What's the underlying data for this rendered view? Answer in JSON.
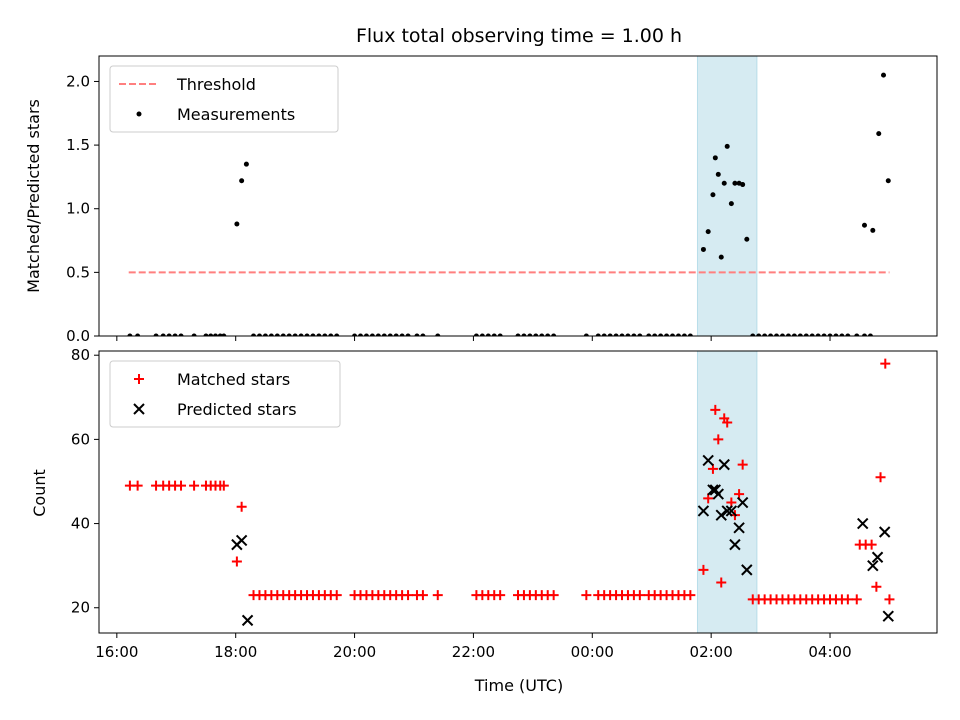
{
  "chart_data": [
    {
      "type": "scatter",
      "title": "Flux total observing time = 1.00 h",
      "xlabel": "",
      "ylabel": "Matched/Predicted stars",
      "x_unit": "hours since 16:00 UTC",
      "xlim": [
        15.7,
        29.8
      ],
      "ylim": [
        0.0,
        2.2
      ],
      "yticks": [
        "0.0",
        "0.5",
        "1.0",
        "1.5",
        "2.0"
      ],
      "yticks_values": [
        0.0,
        0.5,
        1.0,
        1.5,
        2.0
      ],
      "legend": {
        "placement": "upper-left",
        "entries": [
          "Threshold",
          "Measurements"
        ]
      },
      "highlight_span": [
        1.77,
        2.77
      ],
      "threshold": {
        "name": "Threshold",
        "value": 0.5,
        "x_range": [
          16.2,
          29.0
        ],
        "color": "#ff7f7f"
      },
      "series": [
        {
          "name": "Measurements",
          "color": "#000000",
          "points": [
            [
              16.22,
              0
            ],
            [
              16.35,
              0
            ],
            [
              16.66,
              0
            ],
            [
              16.78,
              0
            ],
            [
              16.88,
              0
            ],
            [
              16.98,
              0
            ],
            [
              17.08,
              0
            ],
            [
              17.3,
              0
            ],
            [
              17.5,
              0
            ],
            [
              17.58,
              0
            ],
            [
              17.66,
              0
            ],
            [
              17.74,
              0
            ],
            [
              17.8,
              0
            ],
            [
              18.02,
              0.88
            ],
            [
              18.1,
              1.22
            ],
            [
              18.18,
              1.35
            ],
            [
              18.3,
              0
            ],
            [
              18.4,
              0
            ],
            [
              18.5,
              0
            ],
            [
              18.6,
              0
            ],
            [
              18.7,
              0
            ],
            [
              18.8,
              0
            ],
            [
              18.9,
              0
            ],
            [
              19.0,
              0
            ],
            [
              19.1,
              0
            ],
            [
              19.2,
              0
            ],
            [
              19.3,
              0
            ],
            [
              19.4,
              0
            ],
            [
              19.5,
              0
            ],
            [
              19.6,
              0
            ],
            [
              19.7,
              0
            ],
            [
              20.0,
              0
            ],
            [
              20.1,
              0
            ],
            [
              20.2,
              0
            ],
            [
              20.3,
              0
            ],
            [
              20.4,
              0
            ],
            [
              20.5,
              0
            ],
            [
              20.6,
              0
            ],
            [
              20.7,
              0
            ],
            [
              20.8,
              0
            ],
            [
              20.9,
              0
            ],
            [
              21.05,
              0
            ],
            [
              21.15,
              0
            ],
            [
              21.4,
              0
            ],
            [
              22.05,
              0
            ],
            [
              22.15,
              0
            ],
            [
              22.25,
              0
            ],
            [
              22.35,
              0
            ],
            [
              22.45,
              0
            ],
            [
              22.75,
              0
            ],
            [
              22.85,
              0
            ],
            [
              22.95,
              0
            ],
            [
              23.05,
              0
            ],
            [
              23.15,
              0
            ],
            [
              23.25,
              0
            ],
            [
              23.35,
              0
            ],
            [
              23.9,
              0
            ],
            [
              24.1,
              0
            ],
            [
              24.2,
              0
            ],
            [
              24.3,
              0
            ],
            [
              24.4,
              0
            ],
            [
              24.5,
              0
            ],
            [
              24.6,
              0
            ],
            [
              24.7,
              0
            ],
            [
              24.8,
              0
            ],
            [
              24.95,
              0
            ],
            [
              25.05,
              0
            ],
            [
              25.15,
              0
            ],
            [
              25.25,
              0
            ],
            [
              25.35,
              0
            ],
            [
              25.45,
              0
            ],
            [
              25.55,
              0
            ],
            [
              25.65,
              0
            ],
            [
              25.87,
              0.68
            ],
            [
              25.95,
              0.82
            ],
            [
              26.03,
              1.11
            ],
            [
              26.07,
              1.4
            ],
            [
              26.12,
              1.27
            ],
            [
              26.17,
              0.62
            ],
            [
              26.22,
              1.2
            ],
            [
              26.27,
              1.49
            ],
            [
              26.34,
              1.04
            ],
            [
              26.4,
              1.2
            ],
            [
              26.47,
              1.2
            ],
            [
              26.53,
              1.19
            ],
            [
              26.6,
              0.76
            ],
            [
              26.7,
              0
            ],
            [
              26.8,
              0
            ],
            [
              26.9,
              0
            ],
            [
              27.0,
              0
            ],
            [
              27.1,
              0
            ],
            [
              27.2,
              0
            ],
            [
              27.3,
              0
            ],
            [
              27.4,
              0
            ],
            [
              27.5,
              0
            ],
            [
              27.6,
              0
            ],
            [
              27.7,
              0
            ],
            [
              27.8,
              0
            ],
            [
              27.9,
              0
            ],
            [
              28.0,
              0
            ],
            [
              28.1,
              0
            ],
            [
              28.2,
              0
            ],
            [
              28.3,
              0
            ],
            [
              28.45,
              0
            ],
            [
              28.58,
              0
            ],
            [
              28.68,
              0
            ],
            [
              28.58,
              0.87
            ],
            [
              28.72,
              0.83
            ],
            [
              28.82,
              1.59
            ],
            [
              28.9,
              2.05
            ],
            [
              28.98,
              1.22
            ]
          ]
        }
      ]
    },
    {
      "type": "scatter",
      "title": "",
      "xlabel": "Time (UTC)",
      "ylabel": "Count",
      "x_unit": "hours since 16:00 UTC",
      "xlim": [
        15.7,
        29.8
      ],
      "ylim": [
        14,
        81
      ],
      "xticks": [
        "16:00",
        "18:00",
        "20:00",
        "22:00",
        "00:00",
        "02:00",
        "04:00"
      ],
      "xticks_values": [
        16,
        18,
        20,
        22,
        24,
        26,
        28
      ],
      "yticks": [
        "20",
        "40",
        "60",
        "80"
      ],
      "yticks_values": [
        20,
        40,
        60,
        80
      ],
      "legend": {
        "placement": "upper-left",
        "entries": [
          "Matched stars",
          "Predicted stars"
        ]
      },
      "highlight_span": [
        1.77,
        2.77
      ],
      "series": [
        {
          "name": "Matched stars",
          "marker": "plus",
          "color": "#ff0000",
          "points": [
            [
              16.22,
              49
            ],
            [
              16.35,
              49
            ],
            [
              16.66,
              49
            ],
            [
              16.78,
              49
            ],
            [
              16.88,
              49
            ],
            [
              16.98,
              49
            ],
            [
              17.08,
              49
            ],
            [
              17.3,
              49
            ],
            [
              17.5,
              49
            ],
            [
              17.58,
              49
            ],
            [
              17.66,
              49
            ],
            [
              17.74,
              49
            ],
            [
              17.8,
              49
            ],
            [
              18.02,
              31
            ],
            [
              18.1,
              44
            ],
            [
              18.3,
              23
            ],
            [
              18.4,
              23
            ],
            [
              18.5,
              23
            ],
            [
              18.6,
              23
            ],
            [
              18.7,
              23
            ],
            [
              18.8,
              23
            ],
            [
              18.9,
              23
            ],
            [
              19.0,
              23
            ],
            [
              19.1,
              23
            ],
            [
              19.2,
              23
            ],
            [
              19.3,
              23
            ],
            [
              19.4,
              23
            ],
            [
              19.5,
              23
            ],
            [
              19.6,
              23
            ],
            [
              19.7,
              23
            ],
            [
              20.0,
              23
            ],
            [
              20.1,
              23
            ],
            [
              20.2,
              23
            ],
            [
              20.3,
              23
            ],
            [
              20.4,
              23
            ],
            [
              20.5,
              23
            ],
            [
              20.6,
              23
            ],
            [
              20.7,
              23
            ],
            [
              20.8,
              23
            ],
            [
              20.9,
              23
            ],
            [
              21.05,
              23
            ],
            [
              21.15,
              23
            ],
            [
              21.4,
              23
            ],
            [
              22.05,
              23
            ],
            [
              22.15,
              23
            ],
            [
              22.25,
              23
            ],
            [
              22.35,
              23
            ],
            [
              22.45,
              23
            ],
            [
              22.75,
              23
            ],
            [
              22.85,
              23
            ],
            [
              22.95,
              23
            ],
            [
              23.05,
              23
            ],
            [
              23.15,
              23
            ],
            [
              23.25,
              23
            ],
            [
              23.35,
              23
            ],
            [
              23.9,
              23
            ],
            [
              24.1,
              23
            ],
            [
              24.2,
              23
            ],
            [
              24.3,
              23
            ],
            [
              24.4,
              23
            ],
            [
              24.5,
              23
            ],
            [
              24.6,
              23
            ],
            [
              24.7,
              23
            ],
            [
              24.8,
              23
            ],
            [
              24.95,
              23
            ],
            [
              25.05,
              23
            ],
            [
              25.15,
              23
            ],
            [
              25.25,
              23
            ],
            [
              25.35,
              23
            ],
            [
              25.45,
              23
            ],
            [
              25.55,
              23
            ],
            [
              25.65,
              23
            ],
            [
              25.87,
              29
            ],
            [
              25.95,
              46
            ],
            [
              26.03,
              53
            ],
            [
              26.07,
              67
            ],
            [
              26.12,
              60
            ],
            [
              26.17,
              26
            ],
            [
              26.22,
              65
            ],
            [
              26.27,
              64
            ],
            [
              26.34,
              45
            ],
            [
              26.4,
              42
            ],
            [
              26.47,
              47
            ],
            [
              26.53,
              54
            ],
            [
              26.7,
              22
            ],
            [
              26.8,
              22
            ],
            [
              26.9,
              22
            ],
            [
              27.0,
              22
            ],
            [
              27.1,
              22
            ],
            [
              27.2,
              22
            ],
            [
              27.3,
              22
            ],
            [
              27.4,
              22
            ],
            [
              27.5,
              22
            ],
            [
              27.6,
              22
            ],
            [
              27.7,
              22
            ],
            [
              27.8,
              22
            ],
            [
              27.9,
              22
            ],
            [
              28.0,
              22
            ],
            [
              28.1,
              22
            ],
            [
              28.2,
              22
            ],
            [
              28.3,
              22
            ],
            [
              28.45,
              22
            ],
            [
              28.5,
              35
            ],
            [
              28.6,
              35
            ],
            [
              28.7,
              35
            ],
            [
              28.78,
              25
            ],
            [
              28.85,
              51
            ],
            [
              28.93,
              78
            ],
            [
              29.0,
              22
            ]
          ]
        },
        {
          "name": "Predicted stars",
          "marker": "x",
          "color": "#000000",
          "points": [
            [
              18.02,
              35
            ],
            [
              18.1,
              36
            ],
            [
              18.2,
              17
            ],
            [
              25.87,
              43
            ],
            [
              25.95,
              55
            ],
            [
              26.03,
              48
            ],
            [
              26.07,
              48
            ],
            [
              26.12,
              47
            ],
            [
              26.17,
              42
            ],
            [
              26.22,
              54
            ],
            [
              26.27,
              43
            ],
            [
              26.34,
              43
            ],
            [
              26.4,
              35
            ],
            [
              26.47,
              39
            ],
            [
              26.53,
              45
            ],
            [
              26.6,
              29
            ],
            [
              28.55,
              40
            ],
            [
              28.72,
              30
            ],
            [
              28.8,
              32
            ],
            [
              28.92,
              38
            ],
            [
              28.98,
              18
            ]
          ]
        }
      ]
    }
  ]
}
